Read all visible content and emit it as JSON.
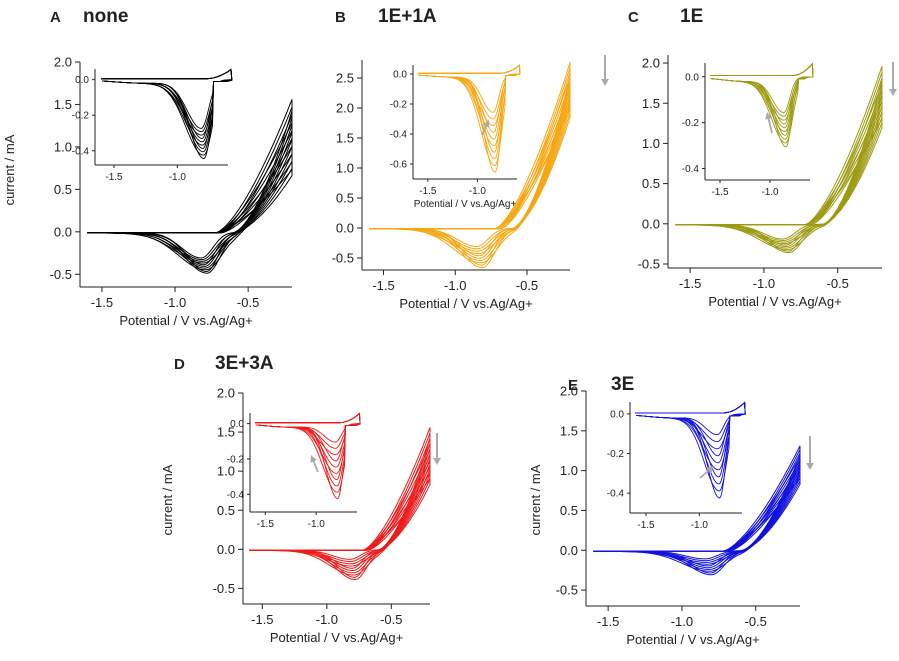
{
  "figure": {
    "panels": [
      {
        "letter": "A",
        "title": "none"
      },
      {
        "letter": "B",
        "title": "1E+1A"
      },
      {
        "letter": "C",
        "title": "1E"
      },
      {
        "letter": "D",
        "title": "3E+3A"
      },
      {
        "letter": "E",
        "title": "3E"
      }
    ]
  },
  "chart_data": [
    {
      "type": "line",
      "panel": "A",
      "title": "none",
      "color": "#000000",
      "xlabel": "Potential / V vs.Ag/Ag+",
      "ylabel": "current / mA",
      "xlim": [
        -1.65,
        -0.2
      ],
      "ylim": [
        -0.65,
        2.0
      ],
      "xticks": [
        -1.5,
        -1.0,
        -0.5
      ],
      "yticks": [
        -0.5,
        0.0,
        0.5,
        1.0,
        1.5,
        2.0
      ],
      "cycles": 10,
      "cathodic_peak_potential": -0.8,
      "cathodic_peak_current": [
        -0.3,
        -0.48
      ],
      "end_current_range": [
        0.72,
        1.55
      ],
      "end_potential": -0.2,
      "trend_arrow": false,
      "inset": {
        "xlim": [
          -1.65,
          -0.6
        ],
        "ylim": [
          -0.48,
          0.06
        ],
        "xticks": [
          -1.5,
          -1.0
        ],
        "yticks": [
          0.0,
          -0.2,
          -0.4
        ],
        "xlabel": "",
        "peak_range": [
          -0.27,
          -0.44
        ]
      }
    },
    {
      "type": "line",
      "panel": "B",
      "title": "1E+1A",
      "color": "#F5A712",
      "xlabel": "Potential / V vs.Ag/Ag+",
      "ylabel": "",
      "xlim": [
        -1.65,
        -0.2
      ],
      "ylim": [
        -0.7,
        2.8
      ],
      "xticks": [
        -1.5,
        -1.0,
        -0.5
      ],
      "yticks": [
        -0.5,
        0.0,
        0.5,
        1.0,
        1.5,
        2.0,
        2.5
      ],
      "cycles": 10,
      "cathodic_peak_potential": -0.83,
      "cathodic_peak_current": [
        -0.3,
        -0.65
      ],
      "end_current_range": [
        2.0,
        2.75
      ],
      "end_potential": -0.2,
      "trend_arrow": true,
      "inset": {
        "xlim": [
          -1.65,
          -0.6
        ],
        "ylim": [
          -0.7,
          0.06
        ],
        "xticks": [
          -1.5,
          -1.0
        ],
        "yticks": [
          0.0,
          -0.2,
          -0.4,
          -0.6
        ],
        "xlabel": "Potential / V vs.Ag/Ag+",
        "peak_range": [
          -0.25,
          -0.65
        ]
      }
    },
    {
      "type": "line",
      "panel": "C",
      "title": "1E",
      "color": "#9C9A12",
      "xlabel": "Potential / V vs.Ag/Ag+",
      "ylabel": "",
      "xlim": [
        -1.65,
        -0.2
      ],
      "ylim": [
        -0.55,
        2.1
      ],
      "xticks": [
        -1.5,
        -1.0,
        -0.5
      ],
      "yticks": [
        -0.5,
        0.0,
        0.5,
        1.0,
        1.5,
        2.0
      ],
      "cycles": 10,
      "cathodic_peak_potential": -0.85,
      "cathodic_peak_current": [
        -0.18,
        -0.35
      ],
      "end_current_range": [
        1.3,
        1.95
      ],
      "end_potential": -0.2,
      "trend_arrow": true,
      "inset": {
        "xlim": [
          -1.65,
          -0.6
        ],
        "ylim": [
          -0.45,
          0.06
        ],
        "xticks": [
          -1.5,
          -1.0
        ],
        "yticks": [
          0.0,
          -0.2,
          -0.4
        ],
        "xlabel": "",
        "peak_range": [
          -0.15,
          -0.3
        ]
      }
    },
    {
      "type": "line",
      "panel": "D",
      "title": "3E+3A",
      "color": "#EE1B1B",
      "xlabel": "Potential / V vs.Ag/Ag+",
      "ylabel": "current / mA",
      "xlim": [
        -1.65,
        -0.2
      ],
      "ylim": [
        -0.7,
        2.0
      ],
      "xticks": [
        -1.5,
        -1.0,
        -0.5
      ],
      "yticks": [
        -0.5,
        0.0,
        0.5,
        1.0,
        1.5,
        2.0
      ],
      "cycles": 10,
      "cathodic_peak_potential": -0.8,
      "cathodic_peak_current": [
        -0.12,
        -0.38
      ],
      "end_current_range": [
        0.9,
        1.55
      ],
      "end_potential": -0.2,
      "trend_arrow": true,
      "inset": {
        "xlim": [
          -1.65,
          -0.6
        ],
        "ylim": [
          -0.5,
          0.06
        ],
        "xticks": [
          -1.5,
          -1.0
        ],
        "yticks": [
          0.0,
          -0.2,
          -0.4
        ],
        "xlabel": "",
        "peak_range": [
          -0.1,
          -0.42
        ]
      }
    },
    {
      "type": "line",
      "panel": "E",
      "title": "3E",
      "color": "#1010E0",
      "xlabel": "Potential / V vs.Ag/Ag+",
      "ylabel": "current / mA",
      "xlim": [
        -1.65,
        -0.2
      ],
      "ylim": [
        -0.7,
        2.0
      ],
      "xticks": [
        -1.5,
        -1.0,
        -0.5
      ],
      "yticks": [
        -0.5,
        0.0,
        0.5,
        1.0,
        1.5,
        2.0
      ],
      "cycles": 10,
      "cathodic_peak_potential": -0.82,
      "cathodic_peak_current": [
        -0.1,
        -0.3
      ],
      "end_current_range": [
        0.9,
        1.3
      ],
      "end_potential": -0.2,
      "trend_arrow": true,
      "inset": {
        "xlim": [
          -1.65,
          -0.6
        ],
        "ylim": [
          -0.5,
          0.06
        ],
        "xticks": [
          -1.5,
          -1.0
        ],
        "yticks": [
          0.0,
          -0.2,
          -0.4
        ],
        "xlabel": "",
        "peak_range": [
          -0.1,
          -0.42
        ]
      }
    }
  ]
}
